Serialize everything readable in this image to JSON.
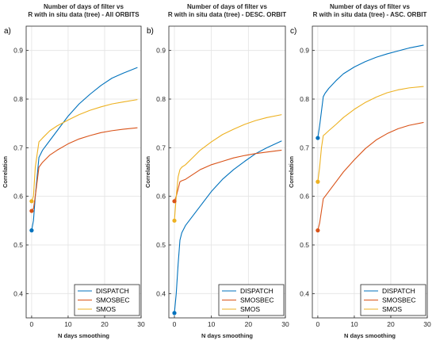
{
  "chart_data": [
    {
      "panel_label": "a)",
      "type": "line",
      "title_lines": [
        "Number of days of filter vs",
        "R with in situ data (tree) - All ORBITS"
      ],
      "xlabel": "N days smoothing",
      "ylabel": "Correlation",
      "xlim": [
        -1.5,
        30
      ],
      "ylim": [
        0.35,
        0.95
      ],
      "xticks": [
        0,
        10,
        20,
        30
      ],
      "yticks": [
        0.4,
        0.5,
        0.6,
        0.7,
        0.8,
        0.9
      ],
      "grid": true,
      "legend_position": "bottom-right",
      "series": [
        {
          "name": "DISPATCH",
          "color": "#0072BD",
          "start": 0.53,
          "x": [
            0,
            0.5,
            1,
            2,
            3,
            5,
            7,
            10,
            13,
            16,
            19,
            22,
            25,
            29
          ],
          "y": [
            0.53,
            0.55,
            0.6,
            0.68,
            0.695,
            0.715,
            0.735,
            0.765,
            0.79,
            0.81,
            0.828,
            0.843,
            0.853,
            0.865
          ]
        },
        {
          "name": "SMOSBEC",
          "color": "#D95319",
          "start": 0.57,
          "x": [
            0,
            0.5,
            1,
            2,
            3,
            5,
            7,
            10,
            13,
            16,
            19,
            22,
            25,
            29
          ],
          "y": [
            0.57,
            0.575,
            0.6,
            0.66,
            0.67,
            0.685,
            0.695,
            0.708,
            0.718,
            0.725,
            0.731,
            0.735,
            0.738,
            0.741
          ]
        },
        {
          "name": "SMOS",
          "color": "#EDB120",
          "start": 0.59,
          "x": [
            0,
            0.5,
            1,
            2,
            3,
            5,
            7,
            10,
            13,
            16,
            19,
            22,
            25,
            29
          ],
          "y": [
            0.59,
            0.6,
            0.66,
            0.712,
            0.72,
            0.735,
            0.745,
            0.757,
            0.768,
            0.777,
            0.784,
            0.79,
            0.794,
            0.799
          ]
        }
      ]
    },
    {
      "panel_label": "b)",
      "type": "line",
      "title_lines": [
        "Number of days of filter vs",
        "R with in situ data (tree) - DESC. ORBIT"
      ],
      "xlabel": "N days smoothing",
      "ylabel": "Correlation",
      "xlim": [
        -1.5,
        30
      ],
      "ylim": [
        0.35,
        0.95
      ],
      "xticks": [
        0,
        10,
        20,
        30
      ],
      "yticks": [
        0.4,
        0.5,
        0.6,
        0.7,
        0.8,
        0.9
      ],
      "grid": true,
      "legend_position": "bottom-right",
      "series": [
        {
          "name": "DISPATCH",
          "color": "#0072BD",
          "start": 0.36,
          "x": [
            0,
            0.5,
            1,
            1.5,
            2,
            3,
            5,
            7,
            10,
            13,
            16,
            19,
            22,
            25,
            29
          ],
          "y": [
            0.36,
            0.4,
            0.46,
            0.51,
            0.525,
            0.54,
            0.56,
            0.58,
            0.61,
            0.635,
            0.655,
            0.672,
            0.688,
            0.7,
            0.714
          ]
        },
        {
          "name": "SMOSBEC",
          "color": "#D95319",
          "start": 0.59,
          "x": [
            0,
            0.5,
            1,
            1.5,
            2,
            3,
            5,
            7,
            10,
            13,
            16,
            19,
            22,
            25,
            29
          ],
          "y": [
            0.59,
            0.6,
            0.615,
            0.63,
            0.632,
            0.635,
            0.645,
            0.655,
            0.665,
            0.672,
            0.679,
            0.684,
            0.688,
            0.691,
            0.695
          ]
        },
        {
          "name": "SMOS",
          "color": "#EDB120",
          "start": 0.55,
          "x": [
            0,
            0.5,
            1,
            1.5,
            2,
            3,
            5,
            7,
            10,
            13,
            16,
            19,
            22,
            25,
            29
          ],
          "y": [
            0.55,
            0.6,
            0.64,
            0.655,
            0.66,
            0.665,
            0.68,
            0.695,
            0.712,
            0.727,
            0.738,
            0.748,
            0.756,
            0.762,
            0.768
          ]
        }
      ]
    },
    {
      "panel_label": "c)",
      "type": "line",
      "title_lines": [
        "Number of days of filter vs",
        "R with in situ data (tree) - ASC. ORBIT"
      ],
      "xlabel": "N days smoothing",
      "ylabel": "Correlation",
      "xlim": [
        -1.5,
        30
      ],
      "ylim": [
        0.35,
        0.95
      ],
      "xticks": [
        0,
        10,
        20,
        30
      ],
      "yticks": [
        0.4,
        0.5,
        0.6,
        0.7,
        0.8,
        0.9
      ],
      "grid": true,
      "legend_position": "bottom-right",
      "series": [
        {
          "name": "DISPATCH",
          "color": "#0072BD",
          "start": 0.72,
          "x": [
            0,
            0.5,
            1,
            1.5,
            2,
            3,
            5,
            7,
            10,
            13,
            16,
            19,
            22,
            25,
            29
          ],
          "y": [
            0.72,
            0.745,
            0.775,
            0.805,
            0.812,
            0.822,
            0.838,
            0.852,
            0.866,
            0.877,
            0.886,
            0.893,
            0.899,
            0.905,
            0.911
          ]
        },
        {
          "name": "SMOSBEC",
          "color": "#D95319",
          "start": 0.53,
          "x": [
            0,
            0.5,
            1,
            1.5,
            2,
            3,
            5,
            7,
            10,
            13,
            16,
            19,
            22,
            25,
            29
          ],
          "y": [
            0.53,
            0.545,
            0.57,
            0.595,
            0.6,
            0.61,
            0.63,
            0.65,
            0.675,
            0.698,
            0.716,
            0.729,
            0.739,
            0.746,
            0.752
          ]
        },
        {
          "name": "SMOS",
          "color": "#EDB120",
          "start": 0.63,
          "x": [
            0,
            0.5,
            1,
            1.5,
            2,
            3,
            5,
            7,
            10,
            13,
            16,
            19,
            22,
            25,
            29
          ],
          "y": [
            0.63,
            0.66,
            0.7,
            0.725,
            0.728,
            0.735,
            0.748,
            0.762,
            0.779,
            0.793,
            0.804,
            0.813,
            0.819,
            0.823,
            0.826
          ]
        }
      ]
    }
  ]
}
